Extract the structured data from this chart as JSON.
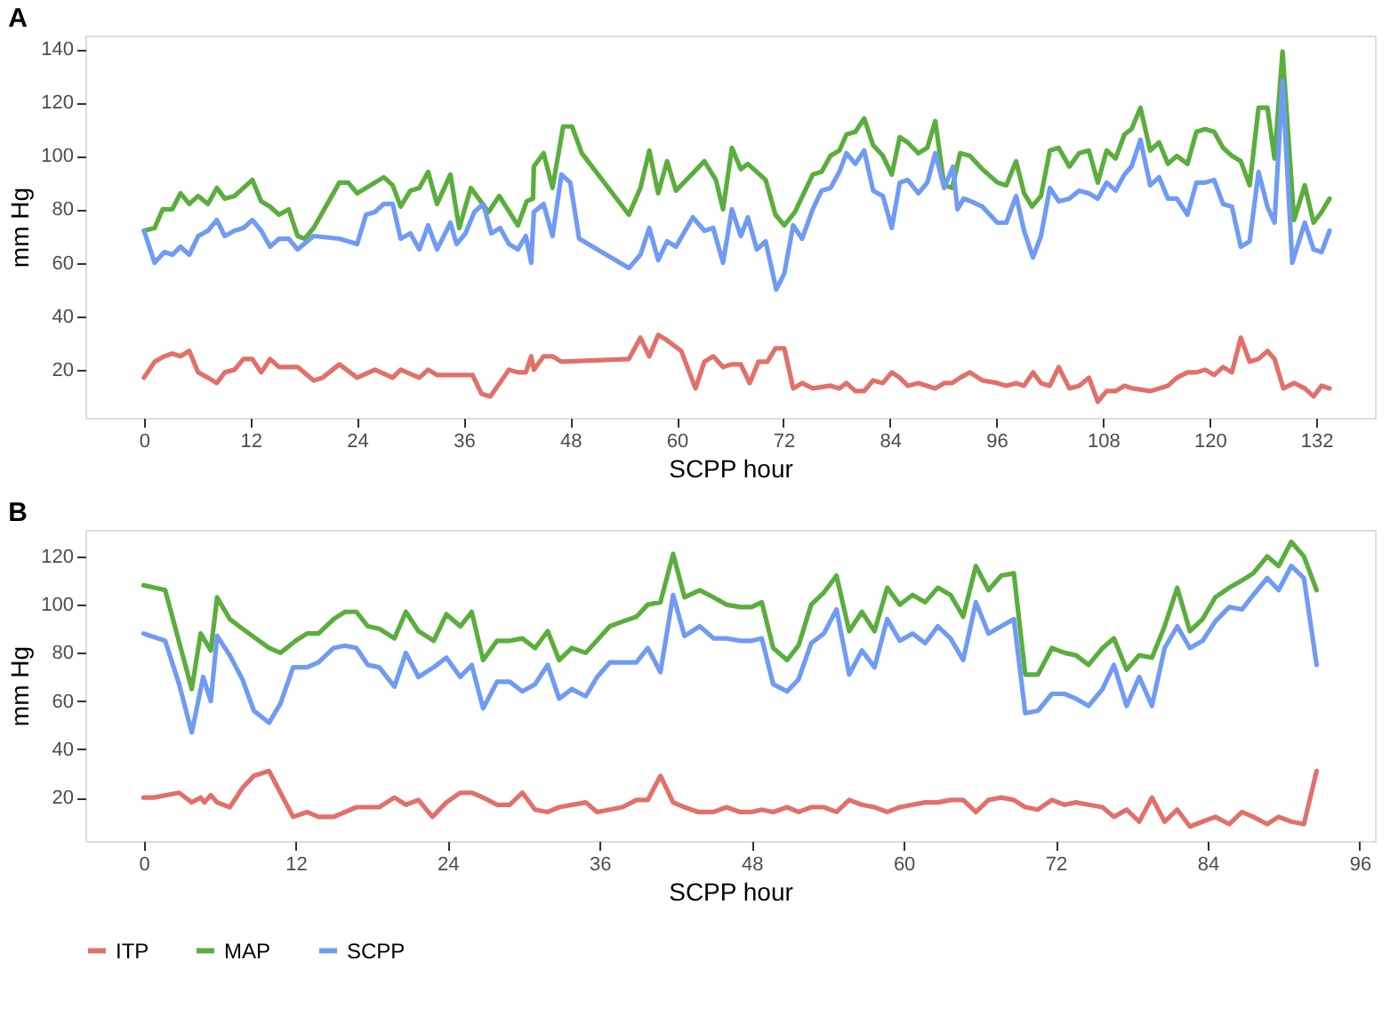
{
  "chart_data": [
    {
      "type": "line",
      "title": "A",
      "xlabel": "SCPP hour",
      "ylabel": "mm Hg",
      "xlim": [
        -6.6,
        138.6
      ],
      "xticks": [
        0,
        12,
        24,
        36,
        48,
        60,
        72,
        84,
        96,
        108,
        120,
        132
      ],
      "ylim": [
        2,
        145
      ],
      "yticks": [
        20,
        40,
        60,
        80,
        100,
        120,
        140
      ],
      "grid": false,
      "legend": "bottom",
      "line_style": "solid",
      "series": [
        {
          "name": "ITP",
          "color": "#e2706a",
          "x": [
            0,
            1.2,
            2.3,
            3.2,
            4.1,
            5.1,
            6.1,
            7.2,
            8.2,
            9.1,
            10.2,
            11.2,
            12.2,
            13.2,
            14.2,
            15.2,
            16.3,
            17.3,
            19.1,
            20.1,
            22,
            24,
            26,
            28,
            28.9,
            31,
            32,
            33,
            35.5,
            36.2,
            37,
            38,
            39,
            41.1,
            42.1,
            43,
            43.6,
            43.9,
            45,
            46,
            47,
            54.6,
            55.9,
            56.9,
            57.9,
            58.9,
            60.5,
            62.1,
            63.1,
            64.1,
            65.2,
            66.2,
            67.2,
            68.2,
            69.2,
            70.2,
            71.1,
            72.1,
            73.1,
            74.1,
            75.3,
            77.3,
            78.3,
            79.1,
            80.1,
            81.1,
            82.1,
            83.2,
            84.2,
            85.1,
            86,
            87.2,
            89.1,
            90.1,
            91,
            91.9,
            93,
            94.4,
            96.1,
            97.1,
            98.2,
            99.1,
            100.1,
            101,
            102,
            103,
            104.2,
            105.3,
            106.4,
            107.4,
            108.4,
            109.4,
            110.4,
            111.3,
            113.3,
            115.3,
            116.3,
            117.5,
            118.5,
            119.5,
            120.5,
            121.5,
            122.5,
            123.5,
            124.5,
            125.5,
            126.5,
            127.3,
            128.3,
            129.5,
            130.7,
            131.7,
            132.6,
            133.5
          ],
          "values": [
            17,
            23,
            25,
            26,
            25,
            27,
            19,
            17,
            15,
            19,
            20,
            24,
            24,
            19,
            24,
            21,
            21,
            21,
            16,
            17,
            22,
            17,
            20,
            17,
            20,
            17,
            20,
            18,
            18,
            18,
            18,
            11,
            10,
            20,
            19,
            19,
            25,
            20,
            25,
            25,
            23,
            24,
            32,
            25,
            33,
            31,
            27,
            13,
            23,
            25,
            21,
            22,
            22,
            15,
            23,
            23,
            28,
            28,
            13,
            15,
            13,
            14,
            13,
            15,
            12,
            12,
            16,
            15,
            19,
            17,
            14,
            15,
            13,
            15,
            15,
            17,
            19,
            16,
            15,
            14,
            15,
            14,
            19,
            15,
            14,
            21,
            13,
            14,
            17,
            8,
            12,
            12,
            14,
            13,
            12,
            14,
            17,
            19,
            19,
            20,
            18,
            21,
            19,
            32,
            23,
            24,
            27,
            24,
            13,
            15,
            13,
            10,
            14,
            13
          ]
        },
        {
          "name": "MAP",
          "color": "#5aae3c",
          "x": [
            0,
            1.2,
            2.1,
            3.2,
            4.1,
            5.1,
            6.1,
            7.2,
            8.2,
            9.1,
            10.2,
            12.2,
            13.2,
            14.2,
            15.2,
            16.3,
            17.3,
            18.1,
            19.1,
            22,
            23,
            24,
            27,
            28,
            28.9,
            30,
            31,
            32,
            33,
            34.5,
            35.5,
            36.8,
            38.8,
            40,
            42.1,
            43.1,
            43.8,
            43.9,
            45,
            46,
            47.2,
            48.2,
            49.3,
            54.6,
            55.9,
            56.9,
            57.9,
            58.9,
            59.9,
            63.1,
            64.4,
            65.2,
            66.2,
            67.2,
            68,
            70,
            71.1,
            72.1,
            73.3,
            75.3,
            76.3,
            77.3,
            78.3,
            79.1,
            80.1,
            81.1,
            82.1,
            83.2,
            84.2,
            85.1,
            86,
            87.2,
            88.2,
            89.1,
            90.1,
            91,
            91.9,
            93,
            94.4,
            96.1,
            97.1,
            98.2,
            99.1,
            100,
            101,
            102,
            103,
            104.2,
            105.3,
            106.4,
            107.4,
            108.4,
            109.4,
            110.4,
            111.2,
            112.2,
            113.3,
            114.3,
            115.3,
            116.3,
            117.5,
            118.5,
            119.5,
            120.5,
            121.5,
            122.5,
            123.5,
            124.5,
            125.5,
            126.5,
            127.3,
            128.2,
            129.5,
            130.7,
            131.7,
            132.6,
            133.5
          ],
          "values": [
            72,
            73,
            80,
            80,
            86,
            82,
            85,
            82,
            88,
            84,
            85,
            91,
            83,
            81,
            78,
            80,
            70,
            69,
            73,
            90,
            90,
            86,
            92,
            89,
            81,
            87,
            88,
            94,
            82,
            93,
            73,
            88,
            79,
            85,
            74,
            83,
            84,
            96,
            101,
            88,
            111,
            111,
            101,
            78,
            88,
            102,
            86,
            98,
            87,
            98,
            91,
            80,
            103,
            95,
            97,
            91,
            78,
            74,
            79,
            93,
            94,
            100,
            102,
            108,
            109,
            114,
            104,
            100,
            93,
            107,
            105,
            101,
            103,
            113,
            89,
            88,
            101,
            100,
            95,
            90,
            89,
            98,
            86,
            81,
            85,
            102,
            103,
            96,
            101,
            102,
            90,
            102,
            99,
            108,
            110,
            118,
            102,
            105,
            97,
            100,
            97,
            109,
            110,
            109,
            103,
            100,
            98,
            89,
            118,
            118,
            99,
            139,
            76,
            89,
            75,
            79,
            84
          ]
        },
        {
          "name": "SCPP",
          "color": "#6f9bf5",
          "x": [
            0,
            1.2,
            2.3,
            3.2,
            4.1,
            5.1,
            6.1,
            7.2,
            8.2,
            9.1,
            10.2,
            11.2,
            12.2,
            13.2,
            14.2,
            15.2,
            16.3,
            17.3,
            19.1,
            22,
            23,
            24,
            25,
            26,
            27,
            28,
            28.9,
            30,
            31,
            32,
            33,
            34.5,
            35.2,
            36.2,
            37.2,
            38.2,
            39.1,
            40.1,
            41.1,
            42.1,
            43,
            43.6,
            43.9,
            45,
            46,
            47,
            48,
            49,
            54.6,
            55.9,
            56.9,
            57.9,
            58.9,
            59.9,
            61.8,
            63.1,
            64.1,
            65.2,
            66.2,
            67.2,
            68,
            69,
            70,
            71.2,
            72.1,
            73.1,
            74.1,
            75.3,
            76.3,
            77.3,
            78.3,
            79.1,
            80.1,
            81.1,
            82.1,
            83.2,
            84.2,
            85.1,
            86,
            87.2,
            88.2,
            89.1,
            90.1,
            91.1,
            91.6,
            92.3,
            93.1,
            94.4,
            96.1,
            97.1,
            98.2,
            99.1,
            100.1,
            101,
            102,
            103,
            104.2,
            105.3,
            106.4,
            107.4,
            108.4,
            109.4,
            110.4,
            111.2,
            112.2,
            113.3,
            114.3,
            115.3,
            116.3,
            117.5,
            118.5,
            119.5,
            120.5,
            121.5,
            122.5,
            123.5,
            124.5,
            125.5,
            126.5,
            127.3,
            128.2,
            129.3,
            130.7,
            131.7,
            132.6,
            133.5
          ],
          "values": [
            72,
            60,
            64,
            63,
            66,
            63,
            70,
            72,
            76,
            70,
            72,
            73,
            76,
            72,
            66,
            69,
            69,
            65,
            70,
            69,
            68,
            67,
            78,
            79,
            82,
            82,
            69,
            71,
            65,
            74,
            65,
            75,
            67,
            71,
            79,
            82,
            71,
            73,
            67,
            65,
            70,
            60,
            79,
            82,
            70,
            93,
            90,
            69,
            58,
            63,
            73,
            61,
            68,
            66,
            77,
            72,
            73,
            60,
            80,
            70,
            77,
            65,
            68,
            50,
            56,
            74,
            69,
            80,
            87,
            88,
            94,
            101,
            97,
            102,
            87,
            85,
            73,
            90,
            91,
            86,
            90,
            101,
            88,
            96,
            80,
            84,
            83,
            81,
            75,
            75,
            85,
            72,
            62,
            70,
            88,
            83,
            84,
            87,
            86,
            84,
            90,
            87,
            93,
            96,
            106,
            89,
            92,
            84,
            84,
            78,
            90,
            90,
            91,
            82,
            81,
            66,
            68,
            94,
            81,
            75,
            128,
            60,
            75,
            65,
            64,
            72
          ]
        }
      ]
    },
    {
      "type": "line",
      "title": "B",
      "xlabel": "SCPP hour",
      "ylabel": "mm Hg",
      "xlim": [
        -4.6,
        97.2
      ],
      "xticks": [
        0,
        12,
        24,
        36,
        48,
        60,
        72,
        84,
        96
      ],
      "ylim": [
        2,
        131
      ],
      "yticks": [
        20,
        40,
        60,
        80,
        100,
        120
      ],
      "grid": false,
      "legend": "bottom",
      "line_style": "solid",
      "series": [
        {
          "name": "ITP",
          "color": "#e2706a",
          "x": [
            0,
            0.8,
            2.8,
            3.8,
            4.5,
            4.8,
            5.3,
            5.8,
            6.8,
            7.8,
            8.7,
            9.9,
            10.8,
            11.8,
            12.9,
            13.8,
            15,
            16.8,
            18.6,
            19.8,
            20.7,
            21.7,
            22.8,
            23.9,
            25,
            25.9,
            26.8,
            27.9,
            28.9,
            29.9,
            30.9,
            31.9,
            32.8,
            34.9,
            35.8,
            37.8,
            38.9,
            39.8,
            40.8,
            41.8,
            42.7,
            43.8,
            45,
            46,
            47.1,
            48,
            48.8,
            49.7,
            50.8,
            51.7,
            52.7,
            53.7,
            54.7,
            55.7,
            56.7,
            57.7,
            58.7,
            59.7,
            61.7,
            62.7,
            63.7,
            64.7,
            65.7,
            66.7,
            67.7,
            68.7,
            69.6,
            70.6,
            71.7,
            72.7,
            73.6,
            74.6,
            75.7,
            76.6,
            77.6,
            78.6,
            79.6,
            80.6,
            81.6,
            82.6,
            83.6,
            84.6,
            85.7,
            86.7,
            87.6,
            88.7,
            89.6,
            90.6,
            91.6,
            92.6
          ],
          "values": [
            20,
            20,
            22,
            18,
            20,
            18,
            21,
            18,
            16,
            24,
            29,
            31,
            22,
            12,
            14,
            12,
            12,
            16,
            16,
            20,
            17,
            19,
            12,
            18,
            22,
            22,
            20,
            17,
            17,
            22,
            15,
            14,
            16,
            18,
            14,
            16,
            19,
            19,
            29,
            18,
            16,
            14,
            14,
            16,
            14,
            14,
            15,
            14,
            16,
            14,
            16,
            16,
            14,
            19,
            17,
            16,
            14,
            16,
            18,
            18,
            19,
            19,
            14,
            19,
            20,
            19,
            16,
            15,
            19,
            17,
            18,
            17,
            16,
            12,
            15,
            10,
            20,
            10,
            15,
            8,
            10,
            12,
            9,
            14,
            12,
            9,
            12,
            10,
            9,
            31
          ]
        },
        {
          "name": "MAP",
          "color": "#5aae3c",
          "x": [
            0,
            1.7,
            3.8,
            4.5,
            5.3,
            5.8,
            6.8,
            7.8,
            9.9,
            10.8,
            12,
            12.9,
            13.8,
            15,
            15.9,
            16.8,
            17.7,
            18.6,
            19.8,
            20.7,
            21.7,
            22.9,
            23.9,
            25,
            25.9,
            26.8,
            27.9,
            28.9,
            29.9,
            30.9,
            31.9,
            32.8,
            33.8,
            34.9,
            36.8,
            37.8,
            38.9,
            39.8,
            40.8,
            41.8,
            42.7,
            43.9,
            45,
            46,
            47.1,
            48,
            48.8,
            49.7,
            50.8,
            51.7,
            52.7,
            53.7,
            54.7,
            55.7,
            56.7,
            57.7,
            58.7,
            59.7,
            60.7,
            61.7,
            62.7,
            63.7,
            64.7,
            65.7,
            66.7,
            67.7,
            68.7,
            69.6,
            70.6,
            71.7,
            72.7,
            73.6,
            74.6,
            75.7,
            76.6,
            77.6,
            78.6,
            79.6,
            80.6,
            81.6,
            82.6,
            83.6,
            84.6,
            85.7,
            86.7,
            87.6,
            88.7,
            89.6,
            90.6,
            91.6,
            92.6
          ],
          "values": [
            108,
            106,
            65,
            88,
            81,
            103,
            94,
            90,
            82,
            80,
            85,
            88,
            88,
            94,
            97,
            97,
            91,
            90,
            86,
            97,
            89,
            85,
            96,
            91,
            97,
            77,
            85,
            85,
            86,
            82,
            89,
            77,
            82,
            80,
            91,
            93,
            95,
            100,
            101,
            121,
            103,
            106,
            103,
            100,
            99,
            99,
            101,
            82,
            77,
            83,
            100,
            105,
            112,
            89,
            97,
            89,
            107,
            100,
            104,
            101,
            107,
            104,
            95,
            116,
            106,
            112,
            113,
            71,
            71,
            82,
            80,
            79,
            75,
            82,
            86,
            73,
            79,
            78,
            91,
            107,
            89,
            94,
            103,
            107,
            110,
            113,
            120,
            116,
            126,
            120,
            106
          ]
        },
        {
          "name": "SCPP",
          "color": "#6f9bf5",
          "x": [
            0,
            1.7,
            2.8,
            3.8,
            4.7,
            5.3,
            5.8,
            6.8,
            7.8,
            8.7,
            9.9,
            10.8,
            11.8,
            12.9,
            13.8,
            15,
            15.9,
            16.8,
            17.7,
            18.6,
            19.8,
            20.7,
            21.7,
            22.9,
            23.9,
            25,
            25.9,
            26.8,
            27.9,
            28.9,
            29.9,
            30.9,
            31.9,
            32.8,
            33.8,
            34.9,
            35.8,
            36.8,
            38.9,
            39.8,
            40.8,
            41.8,
            42.7,
            43.9,
            45,
            46,
            47.1,
            48,
            48.8,
            49.7,
            50.8,
            51.7,
            52.7,
            53.7,
            54.7,
            55.7,
            56.7,
            57.7,
            58.7,
            59.7,
            60.7,
            61.7,
            62.7,
            63.7,
            64.7,
            65.7,
            66.7,
            67.7,
            68.7,
            69.6,
            70.6,
            71.7,
            72.7,
            73.6,
            74.6,
            75.7,
            76.6,
            77.6,
            78.6,
            79.6,
            80.6,
            81.6,
            82.6,
            83.6,
            84.6,
            85.7,
            86.7,
            87.6,
            88.7,
            89.6,
            90.6,
            91.6,
            92.6
          ],
          "values": [
            88,
            85,
            67,
            47,
            70,
            60,
            87,
            79,
            69,
            56,
            51,
            59,
            74,
            74,
            76,
            82,
            83,
            82,
            75,
            74,
            66,
            80,
            70,
            74,
            78,
            70,
            75,
            57,
            68,
            68,
            64,
            67,
            75,
            61,
            65,
            62,
            70,
            76,
            76,
            82,
            72,
            104,
            87,
            91,
            86,
            86,
            85,
            85,
            86,
            67,
            64,
            69,
            84,
            88,
            98,
            71,
            81,
            74,
            94,
            85,
            88,
            84,
            91,
            86,
            77,
            101,
            88,
            91,
            94,
            55,
            56,
            63,
            63,
            61,
            58,
            65,
            75,
            58,
            70,
            58,
            82,
            91,
            82,
            85,
            93,
            99,
            98,
            104,
            111,
            106,
            116,
            111,
            75
          ]
        }
      ]
    }
  ]
}
